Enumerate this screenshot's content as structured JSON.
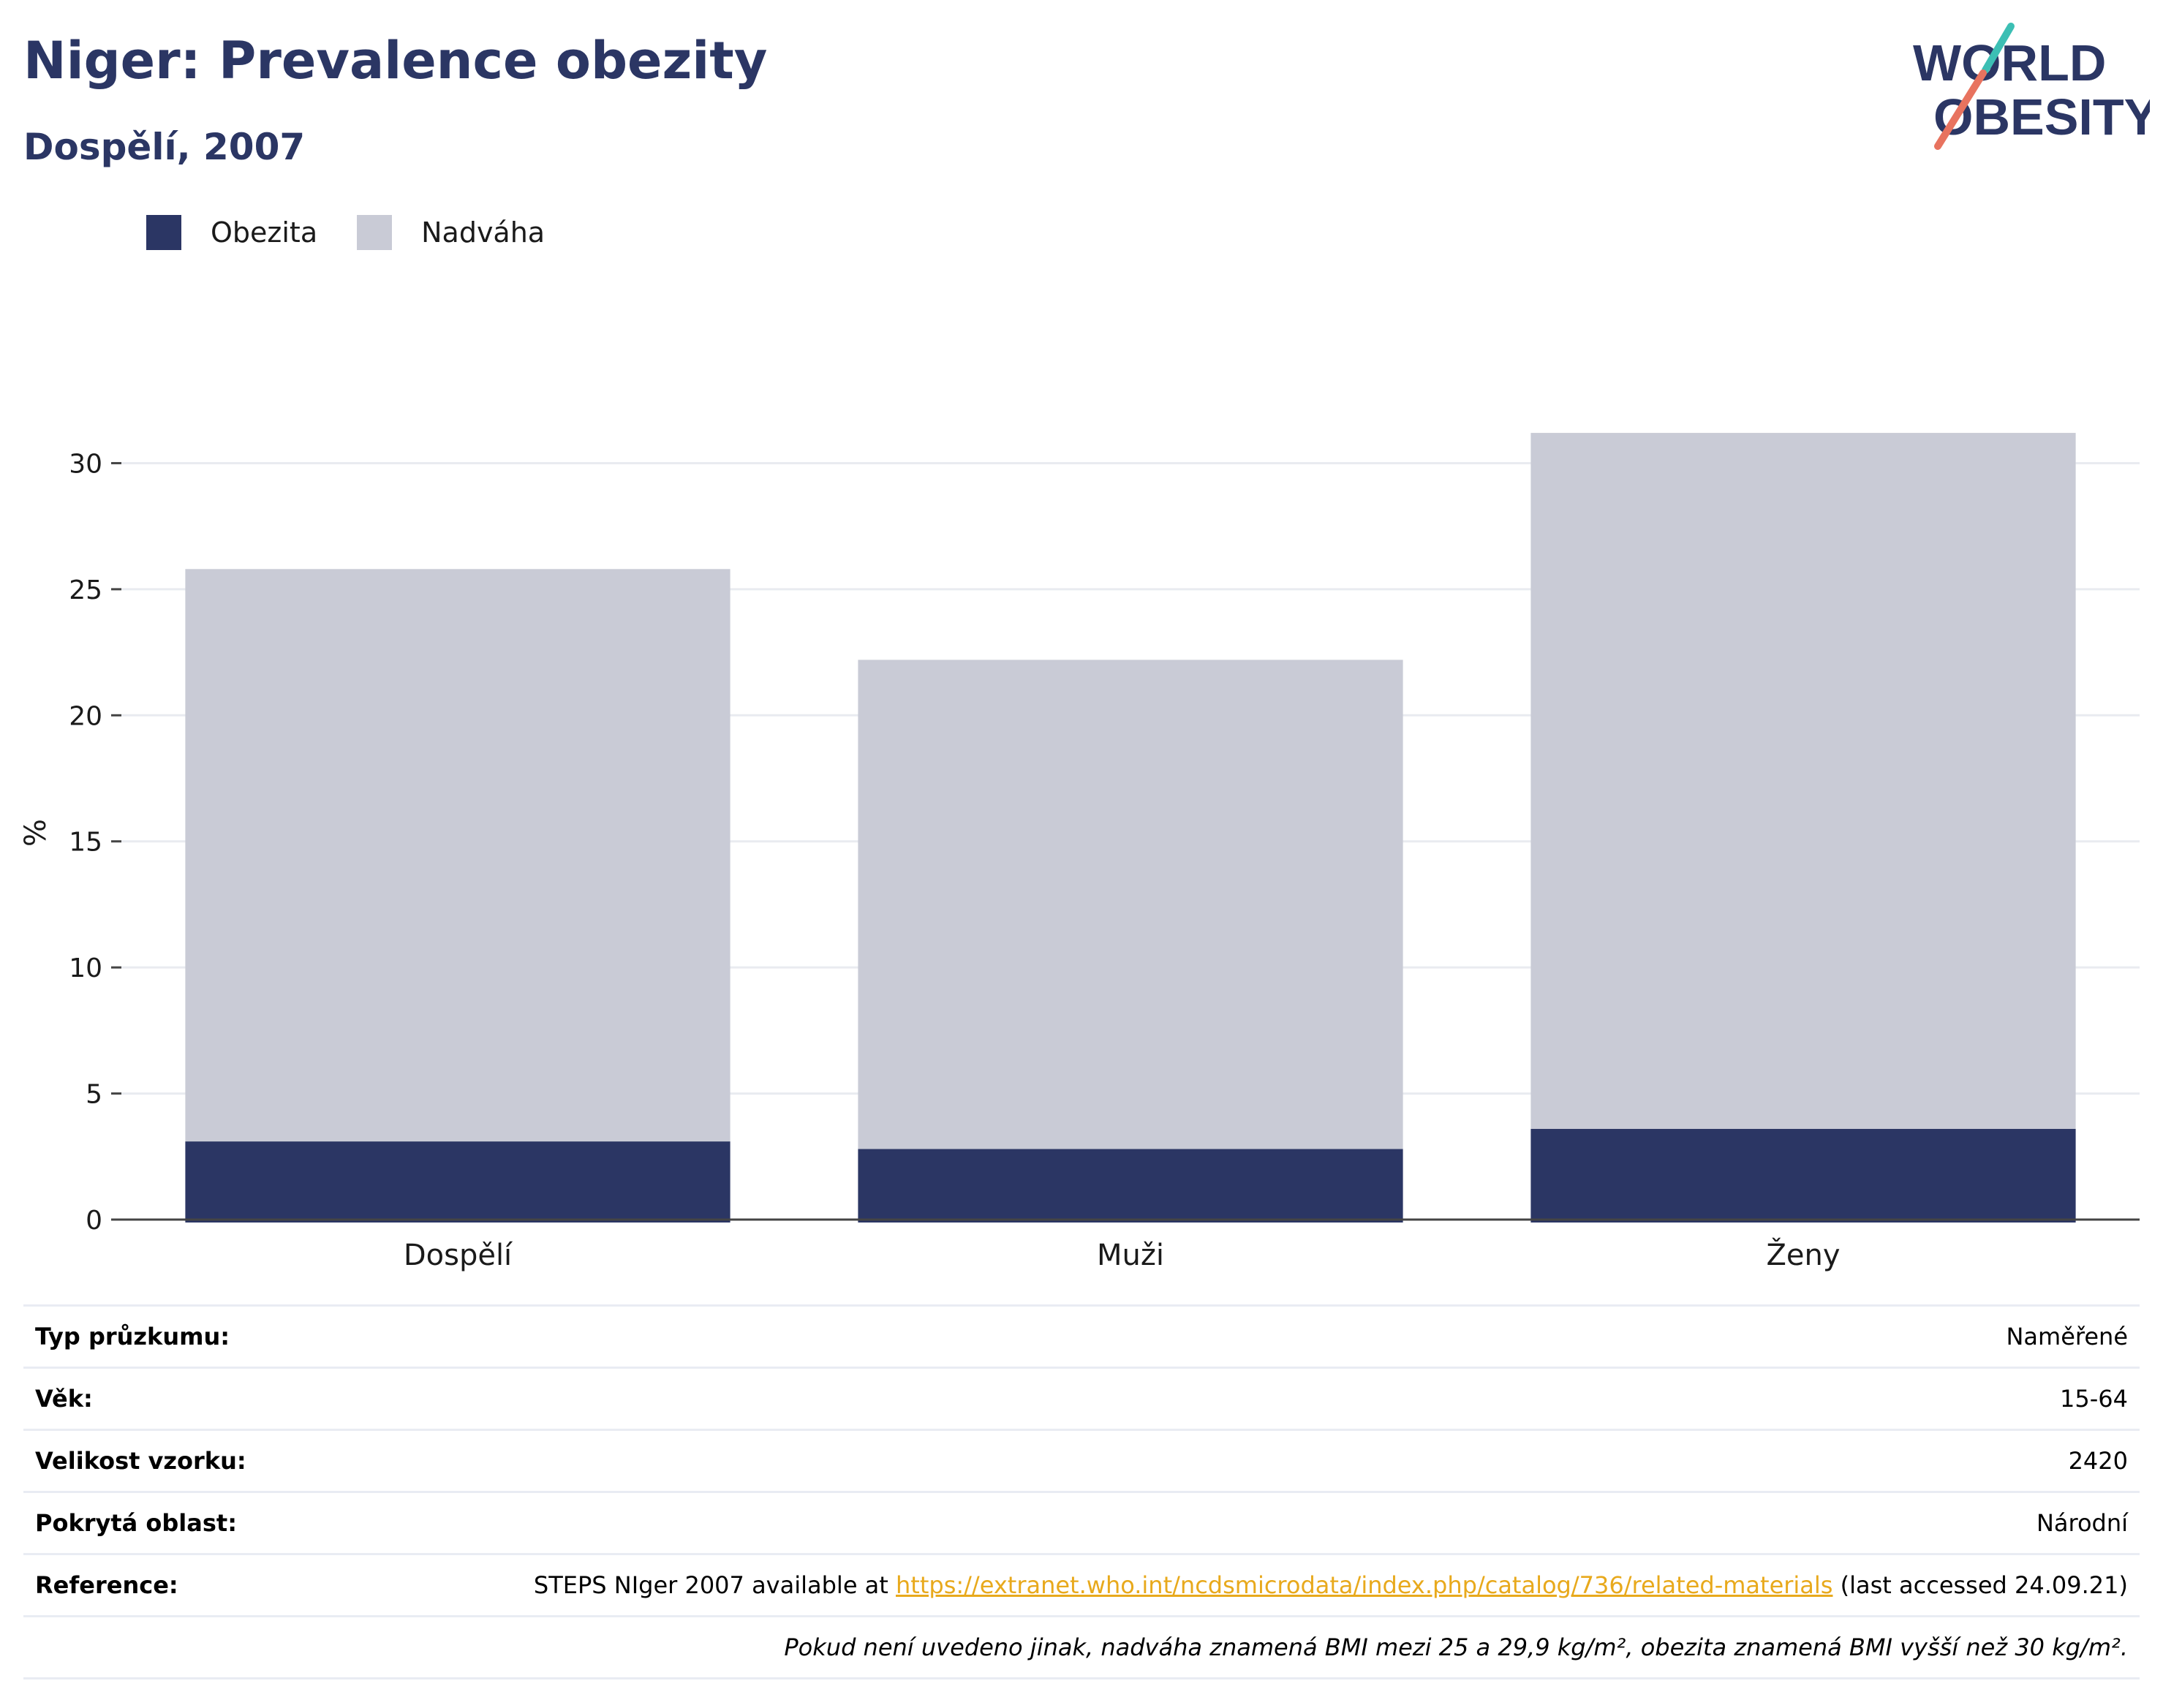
{
  "header": {
    "title": "Niger: Prevalence obezity",
    "subtitle": "Dospělí, 2007",
    "logo_line1": "WORLD",
    "logo_line2": "OBESITY"
  },
  "colors": {
    "obezita": "#2b3664",
    "nadvaha": "#c9cbd6",
    "title": "#2b3664",
    "link": "#e8a91c"
  },
  "chart_data": {
    "type": "bar",
    "stacked": true,
    "categories": [
      "Dospělí",
      "Muži",
      "Ženy"
    ],
    "series": [
      {
        "name": "Obezita",
        "values": [
          3.1,
          2.8,
          3.6
        ]
      },
      {
        "name": "Nadváha",
        "values": [
          22.7,
          19.4,
          27.6
        ]
      }
    ],
    "totals": [
      25.8,
      22.2,
      31.2
    ],
    "ylabel": "%",
    "ylim": [
      0,
      33
    ],
    "yticks": [
      0,
      5,
      10,
      15,
      20,
      25,
      30
    ],
    "grid": true,
    "legend": "top-left"
  },
  "info": {
    "rows": [
      {
        "label": "Typ průzkumu:",
        "value": "Naměřené"
      },
      {
        "label": "Věk:",
        "value": "15-64"
      },
      {
        "label": "Velikost vzorku:",
        "value": "2420"
      },
      {
        "label": "Pokrytá oblast:",
        "value": "Národní"
      }
    ],
    "reference": {
      "label": "Reference:",
      "prefix": "STEPS NIger 2007 available at ",
      "link": "https://extranet.who.int/ncdsmicrodata/index.php/catalog/736/related-materials",
      "suffix": " (last accessed 24.09.21)"
    },
    "note": "Pokud není uvedeno jinak, nadváha znamená BMI mezi 25 a 29,9 kg/m², obezita znamená BMI vyšší než 30 kg/m²."
  }
}
